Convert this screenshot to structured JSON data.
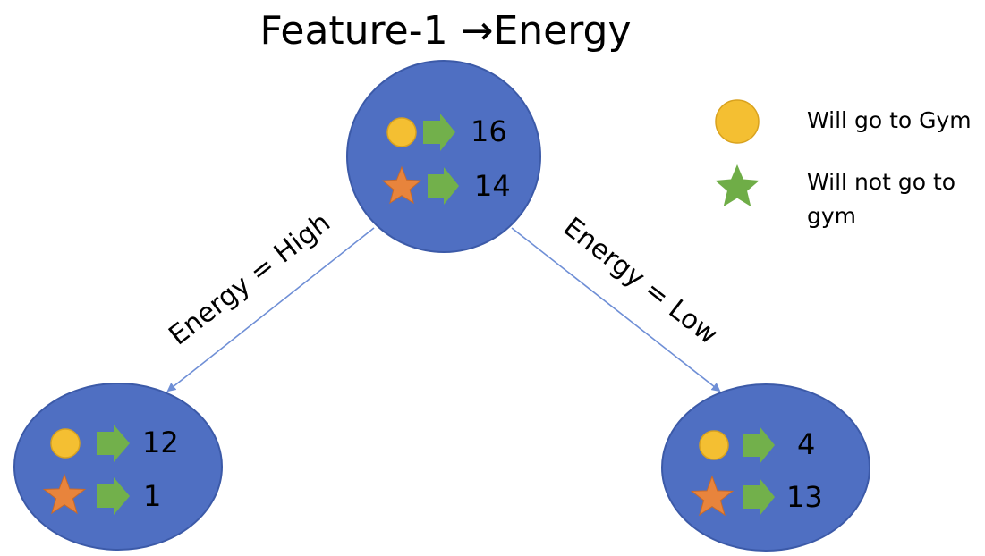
{
  "title": "Feature-1 →Energy",
  "colors": {
    "node_fill": "#4F6FC2",
    "node_stroke": "#3C5AA8",
    "circle_fill": "#F4BF32",
    "star_orange": "#E8843C",
    "star_green": "#6FAD47",
    "arrow_fill": "#72B04B",
    "edge": "#6F8FD6"
  },
  "nodes": {
    "root": {
      "will_go": "16",
      "will_not_go": "14"
    },
    "left": {
      "will_go": "12",
      "will_not_go": "1"
    },
    "right": {
      "will_go": "4",
      "will_not_go": "13"
    }
  },
  "edges": {
    "left_label": "Energy = High",
    "right_label": "Energy = Low"
  },
  "legend": {
    "will_go_label": "Will go to Gym",
    "will_not_go_line1": "Will not go to",
    "will_not_go_line2": "gym"
  }
}
